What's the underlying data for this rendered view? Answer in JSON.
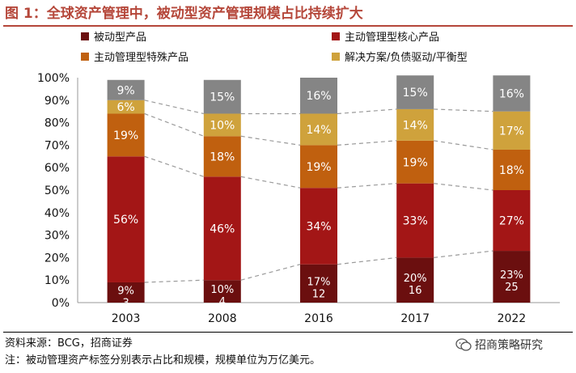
{
  "title": "图 1：全球资产管理中，被动型资产管理规模占比持续扩大",
  "source": "资料来源：BCG，招商证券",
  "note": "注：被动管理资产标签分别表示占比和规模，规模单位为万亿美元。",
  "watermark": "招商策略研究",
  "chart_data": {
    "type": "bar",
    "stacked": true,
    "categories": [
      "2003",
      "2008",
      "2016",
      "2017",
      "2022"
    ],
    "series": [
      {
        "name": "被动型产品",
        "color": "#6b0f0f",
        "values": [
          9,
          10,
          17,
          20,
          23
        ],
        "labels": [
          "9%",
          "10%",
          "17%",
          "20%",
          "23%"
        ],
        "sublabels": [
          "3",
          "4",
          "12",
          "16",
          "25"
        ]
      },
      {
        "name": "主动管理型核心产品",
        "color": "#a31616",
        "values": [
          56,
          46,
          34,
          33,
          27
        ],
        "labels": [
          "56%",
          "46%",
          "34%",
          "33%",
          "27%"
        ]
      },
      {
        "name": "主动管理型特殊产品",
        "color": "#c0600f",
        "values": [
          19,
          18,
          19,
          19,
          18
        ],
        "labels": [
          "19%",
          "18%",
          "19%",
          "19%",
          "18%"
        ]
      },
      {
        "name": "解决方案/负债驱动/平衡型",
        "color": "#cfa23c",
        "values": [
          6,
          10,
          14,
          14,
          17
        ],
        "labels": [
          "6%",
          "10%",
          "14%",
          "14%",
          "17%"
        ]
      },
      {
        "name": "",
        "color": "#858585",
        "values": [
          9,
          15,
          16,
          15,
          16
        ],
        "labels": [
          "9%",
          "15%",
          "16%",
          "15%",
          "16%"
        ]
      }
    ],
    "legend": [
      "被动型产品",
      "主动管理型核心产品",
      "主动管理型特殊产品",
      "解决方案/负债驱动/平衡型"
    ],
    "yticks": [
      "0%",
      "10%",
      "20%",
      "30%",
      "40%",
      "50%",
      "60%",
      "70%",
      "80%",
      "90%",
      "100%"
    ],
    "ylim": [
      0,
      100
    ],
    "connector_lines": "dashed lines linking boundaries between stacked segments",
    "grid": false
  }
}
